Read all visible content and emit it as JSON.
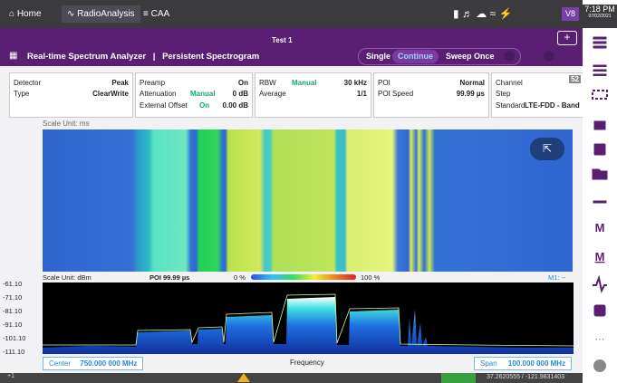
{
  "top_bar": {
    "tabs": [
      "Home",
      "RadioAnalysis",
      "CAA"
    ],
    "badge": "V8",
    "time": "7:18 PM",
    "date": "07/02/2021"
  },
  "header": {
    "title": "Test 1",
    "mode": "Real-time Spectrum Analyzer",
    "separator": "|",
    "view": "Persistent Spectrogram",
    "buttons": [
      "Single",
      "Continue",
      "Sweep Once"
    ]
  },
  "settings": {
    "detector": {
      "label": "Detector",
      "value": "Peak"
    },
    "type": {
      "label": "Type",
      "value": "ClearWrite"
    },
    "preamp": {
      "label": "Preamp",
      "value": "On"
    },
    "attenuation": {
      "label": "Attenuation",
      "mode": "Manual",
      "value": "0 dB"
    },
    "external_offset": {
      "label": "External Offset",
      "mode": "On",
      "value": "0.00 dB"
    },
    "rbw": {
      "label": "RBW",
      "mode": "Manual",
      "value": "30 kHz"
    },
    "average": {
      "label": "Average",
      "value": "1/1"
    },
    "poi": {
      "label": "POI",
      "value": "Normal"
    },
    "poi_speed": {
      "label": "POI Speed",
      "value": "99.99 µs"
    },
    "channel": {
      "label": "Channel",
      "value": "52"
    },
    "step": {
      "label": "Step"
    },
    "standard": {
      "label": "Standard",
      "value": "LTE-FDD - Band"
    }
  },
  "spectrogram": {
    "scale_unit": "Scale Unit: ms"
  },
  "spectrum": {
    "scale_unit": "Scale Unit: dBm",
    "poi": "POI 99.99 µs",
    "legend_min": "0 %",
    "legend_max": "100 %",
    "marker": "M1: --",
    "y_labels": [
      "-61.10",
      "-71.10",
      "-81.10",
      "-91.10",
      "-101.10",
      "-111.10"
    ],
    "center_label": "Center",
    "center": "750.000 000 MHz",
    "x_label": "Frequency",
    "span_label": "Span",
    "span": "100.000 000 MHz"
  },
  "status_bar": {
    "count": "+1",
    "coordinates": "37.2620555 / -121.9831403"
  }
}
